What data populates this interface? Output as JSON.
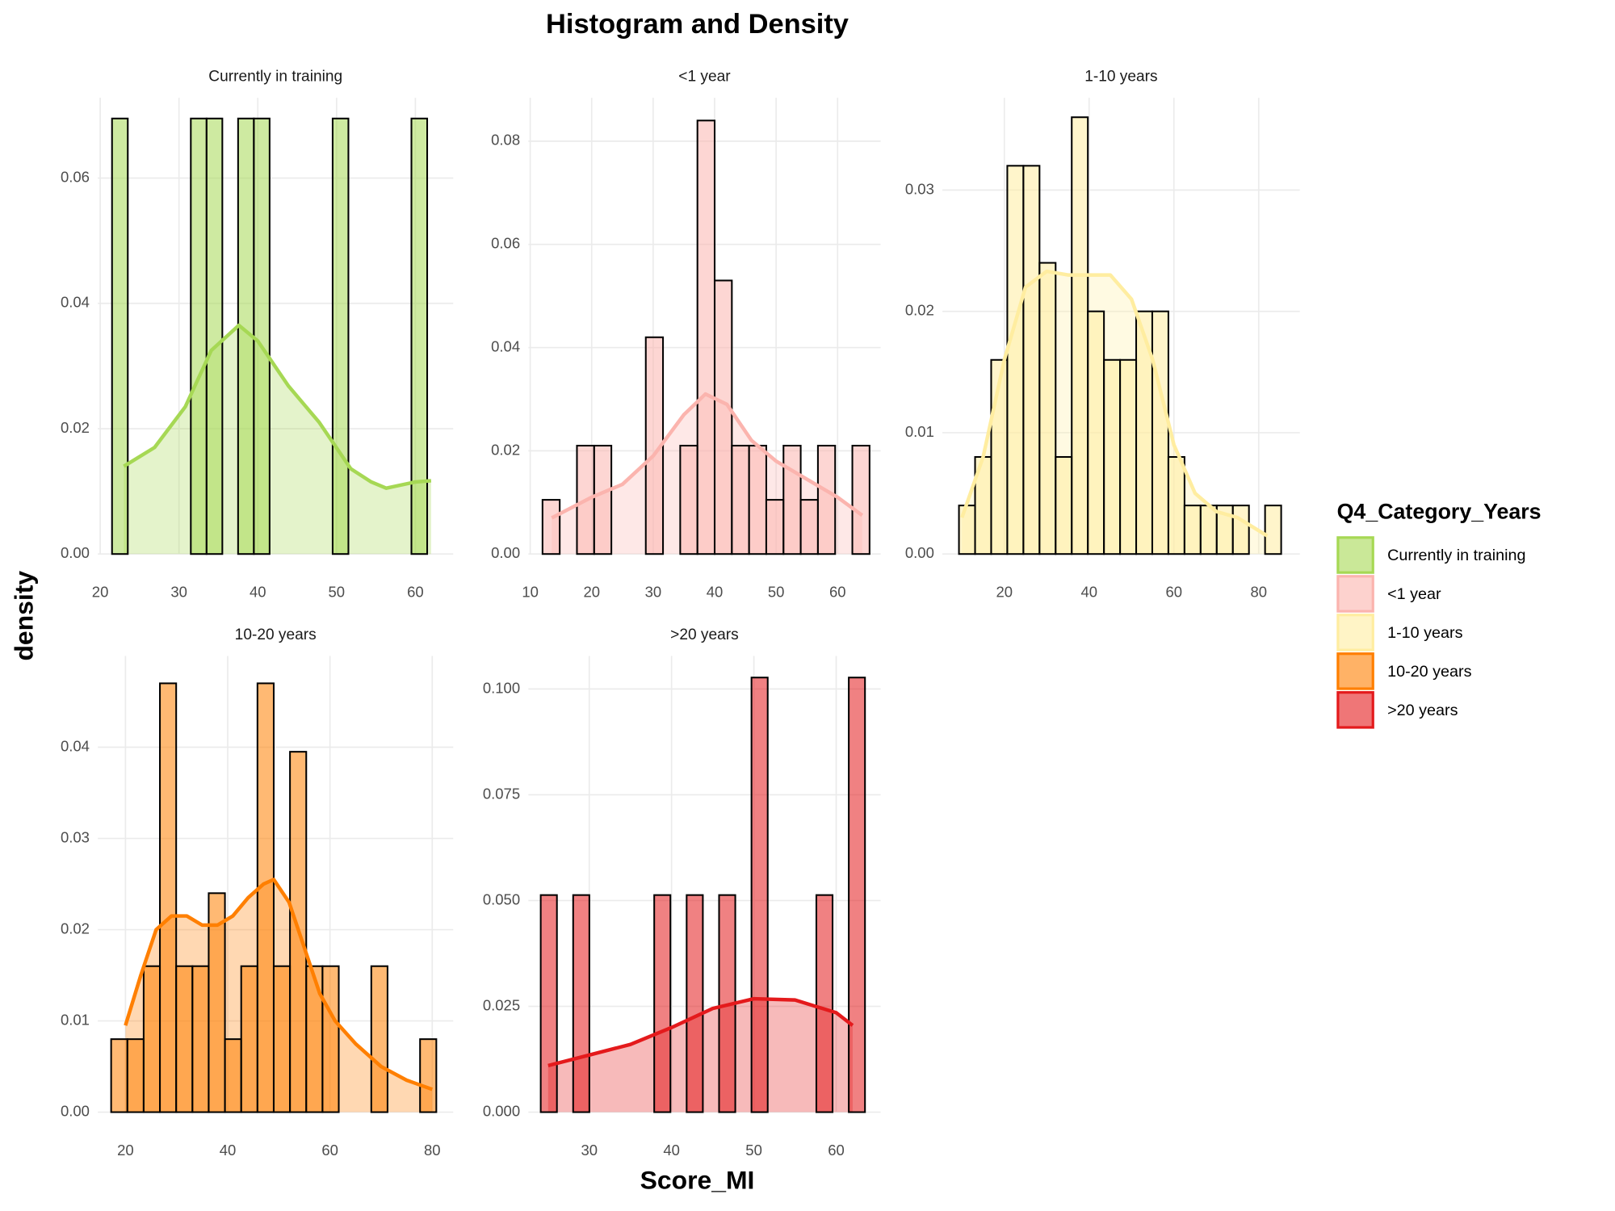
{
  "title": "Histogram and Density",
  "x_label": "Score_MI",
  "y_label": "density",
  "legend_title": "Q4_Category_Years",
  "chart_data": [
    {
      "type": "histogram",
      "title": "Currently in training",
      "color": "#a6d854",
      "grid": true,
      "bins": [
        21.5,
        23.5,
        25.5,
        27.5,
        29.5,
        31.5,
        33.5,
        35.5,
        37.5,
        39.5,
        41.5,
        43.5,
        45.5,
        47.5,
        49.5,
        51.5,
        53.5,
        55.5,
        57.5,
        59.5,
        61.5
      ],
      "values": [
        0.0695,
        0,
        0,
        0,
        0,
        0.0695,
        0.0695,
        0,
        0.0695,
        0.0695,
        0,
        0,
        0,
        0,
        0.0695,
        0,
        0,
        0,
        0,
        0.0695
      ],
      "density": {
        "x": [
          23,
          26.9,
          30.8,
          34.1,
          37.6,
          40,
          43.9,
          47.8,
          51.8,
          54.4,
          56.3,
          60,
          62
        ],
        "values": [
          0.014,
          0.017,
          0.0235,
          0.0325,
          0.0365,
          0.034,
          0.0268,
          0.021,
          0.0136,
          0.0115,
          0.0105,
          0.0115,
          0.0117
        ]
      },
      "xlim": [
        19.7,
        64.8
      ],
      "xticks": [
        20,
        30,
        40,
        50,
        60
      ],
      "ylim": [
        0,
        0.0728
      ],
      "yticks": [
        {
          "value": 0,
          "label": "0.00"
        },
        {
          "value": 0.02,
          "label": "0.02"
        },
        {
          "value": 0.04,
          "label": "0.04"
        },
        {
          "value": 0.06,
          "label": "0.06"
        }
      ]
    },
    {
      "type": "histogram",
      "title": "<1 year",
      "color": "#fbb4ae",
      "grid": true,
      "bins": [
        12,
        14.8,
        17.6,
        20.4,
        23.2,
        26,
        28.8,
        31.6,
        34.4,
        37.2,
        40,
        42.8,
        45.6,
        48.4,
        51.2,
        54,
        56.8,
        59.6,
        62.4,
        65.2
      ],
      "values": [
        0.0105,
        0,
        0.021,
        0.021,
        0,
        0,
        0.042,
        0,
        0.021,
        0.084,
        0.053,
        0.021,
        0.021,
        0.0105,
        0.021,
        0.0105,
        0.021,
        0,
        0.021
      ],
      "density": {
        "x": [
          13.5,
          20,
          25,
          30,
          35,
          38.5,
          42,
          46,
          50,
          55,
          60,
          64
        ],
        "values": [
          0.007,
          0.011,
          0.0135,
          0.019,
          0.027,
          0.031,
          0.029,
          0.022,
          0.018,
          0.0145,
          0.011,
          0.0075
        ]
      },
      "xlim": [
        9.7,
        67
      ],
      "xticks": [
        10,
        20,
        30,
        40,
        50,
        60
      ],
      "ylim": [
        0,
        0.0884
      ],
      "yticks": [
        {
          "value": 0,
          "label": "0.00"
        },
        {
          "value": 0.02,
          "label": "0.02"
        },
        {
          "value": 0.04,
          "label": "0.04"
        },
        {
          "value": 0.06,
          "label": "0.06"
        },
        {
          "value": 0.08,
          "label": "0.08"
        }
      ]
    },
    {
      "type": "histogram",
      "title": "1-10 years",
      "color": "#ffeda0",
      "grid": true,
      "bins": [
        9.3,
        13.1,
        16.9,
        20.7,
        24.5,
        28.3,
        32.1,
        35.9,
        39.7,
        43.5,
        47.3,
        51.1,
        54.9,
        58.7,
        62.5,
        66.3,
        70.1,
        73.9,
        77.7,
        81.5,
        85.3
      ],
      "values": [
        0.004,
        0.008,
        0.016,
        0.032,
        0.032,
        0.024,
        0.008,
        0.036,
        0.02,
        0.016,
        0.016,
        0.02,
        0.02,
        0.008,
        0.004,
        0.004,
        0.004,
        0.004,
        0,
        0.004
      ],
      "density": {
        "x": [
          10,
          15,
          20,
          25,
          30,
          35,
          40,
          45,
          50,
          55,
          60,
          65,
          70,
          75,
          82
        ],
        "values": [
          0.003,
          0.008,
          0.016,
          0.022,
          0.0233,
          0.023,
          0.023,
          0.023,
          0.021,
          0.016,
          0.009,
          0.005,
          0.0035,
          0.003,
          0.0015
        ]
      },
      "xlim": [
        5.4,
        89.7
      ],
      "xticks": [
        20,
        40,
        60,
        80
      ],
      "ylim": [
        0,
        0.0376
      ],
      "yticks": [
        {
          "value": 0,
          "label": "0.00"
        },
        {
          "value": 0.01,
          "label": "0.01"
        },
        {
          "value": 0.02,
          "label": "0.02"
        },
        {
          "value": 0.03,
          "label": "0.03"
        }
      ]
    },
    {
      "type": "histogram",
      "title": "10-20 years",
      "color": "#ff7f00",
      "grid": true,
      "bins": [
        17.2,
        20.38,
        23.56,
        26.74,
        29.92,
        33.1,
        36.28,
        39.46,
        42.64,
        45.82,
        49,
        52.18,
        55.36,
        58.54,
        61.72,
        64.9,
        68.08,
        71.26,
        74.44,
        77.62,
        80.8
      ],
      "values": [
        0.008,
        0.008,
        0.016,
        0.047,
        0.016,
        0.016,
        0.024,
        0.008,
        0.016,
        0.047,
        0.016,
        0.0395,
        0.016,
        0.016,
        0,
        0,
        0.016,
        0,
        0,
        0.008
      ],
      "density": {
        "x": [
          20,
          23,
          26,
          29,
          32,
          35,
          38,
          41,
          44,
          47,
          49,
          52,
          55,
          58,
          61,
          65,
          70,
          75,
          80
        ],
        "values": [
          0.0095,
          0.015,
          0.02,
          0.0215,
          0.0215,
          0.0205,
          0.0205,
          0.0215,
          0.0235,
          0.025,
          0.0255,
          0.023,
          0.018,
          0.013,
          0.01,
          0.0075,
          0.005,
          0.0035,
          0.0025
        ]
      },
      "xlim": [
        14.6,
        84.1
      ],
      "xticks": [
        20,
        40,
        60,
        80
      ],
      "ylim": [
        0,
        0.05
      ],
      "yticks": [
        {
          "value": 0,
          "label": "0.00"
        },
        {
          "value": 0.01,
          "label": "0.01"
        },
        {
          "value": 0.02,
          "label": "0.02"
        },
        {
          "value": 0.03,
          "label": "0.03"
        },
        {
          "value": 0.04,
          "label": "0.04"
        }
      ]
    },
    {
      "type": "histogram",
      "title": ">20 years",
      "color": "#e41a1c",
      "grid": true,
      "bins": [
        24.1,
        26.07,
        28.04,
        30.01,
        31.98,
        33.95,
        35.92,
        37.89,
        39.86,
        41.83,
        43.8,
        45.77,
        47.74,
        49.71,
        51.68,
        53.65,
        55.62,
        57.59,
        59.56,
        61.53,
        63.5
      ],
      "values": [
        0.0513,
        0,
        0.0513,
        0,
        0,
        0,
        0,
        0.0513,
        0,
        0.0513,
        0,
        0.0513,
        0,
        0.1027,
        0,
        0,
        0,
        0.0513,
        0,
        0.1027
      ],
      "density": {
        "x": [
          25,
          30,
          35,
          40,
          45,
          50,
          55,
          60,
          62
        ],
        "values": [
          0.011,
          0.0135,
          0.016,
          0.02,
          0.0245,
          0.0268,
          0.0265,
          0.0235,
          0.0205
        ]
      },
      "xlim": [
        22.6,
        65.4
      ],
      "xticks": [
        30,
        40,
        50,
        60
      ],
      "ylim": [
        0,
        0.1078
      ],
      "yticks": [
        {
          "value": 0,
          "label": "0.000"
        },
        {
          "value": 0.025,
          "label": "0.025"
        },
        {
          "value": 0.05,
          "label": "0.050"
        },
        {
          "value": 0.075,
          "label": "0.075"
        },
        {
          "value": 0.1,
          "label": "0.100"
        }
      ]
    }
  ]
}
